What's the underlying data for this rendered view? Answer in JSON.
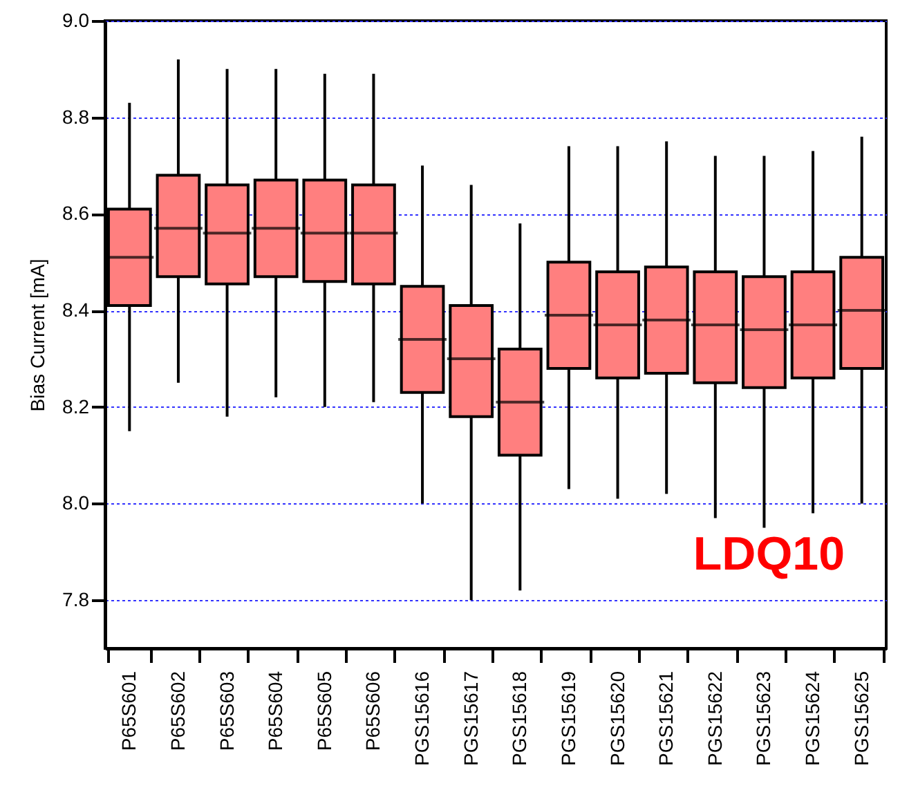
{
  "chart_data": {
    "type": "box",
    "ylabel": "Bias Current [mA]",
    "categories": [
      "P65S601",
      "P65S602",
      "P65S603",
      "P65S604",
      "P65S605",
      "P65S606",
      "PGS15616",
      "PGS15617",
      "PGS15618",
      "PGS15619",
      "PGS15620",
      "PGS15621",
      "PGS15622",
      "PGS15623",
      "PGS15624",
      "PGS15625"
    ],
    "series": [
      {
        "color": "#ff7f7f",
        "boxes": [
          {
            "low": 8.15,
            "q1": 8.41,
            "median": 8.51,
            "q3": 8.61,
            "high": 8.83
          },
          {
            "low": 8.25,
            "q1": 8.47,
            "median": 8.57,
            "q3": 8.68,
            "high": 8.92
          },
          {
            "low": 8.18,
            "q1": 8.455,
            "median": 8.56,
            "q3": 8.66,
            "high": 8.9
          },
          {
            "low": 8.22,
            "q1": 8.47,
            "median": 8.57,
            "q3": 8.67,
            "high": 8.9
          },
          {
            "low": 8.2,
            "q1": 8.46,
            "median": 8.56,
            "q3": 8.67,
            "high": 8.89
          },
          {
            "low": 8.21,
            "q1": 8.455,
            "median": 8.56,
            "q3": 8.66,
            "high": 8.89
          },
          {
            "low": 8.0,
            "q1": 8.23,
            "median": 8.34,
            "q3": 8.45,
            "high": 8.7
          },
          {
            "low": 7.8,
            "q1": 8.18,
            "median": 8.3,
            "q3": 8.41,
            "high": 8.66
          },
          {
            "low": 7.82,
            "q1": 8.1,
            "median": 8.21,
            "q3": 8.32,
            "high": 8.58
          },
          {
            "low": 8.03,
            "q1": 8.28,
            "median": 8.39,
            "q3": 8.5,
            "high": 8.74
          },
          {
            "low": 8.01,
            "q1": 8.26,
            "median": 8.37,
            "q3": 8.48,
            "high": 8.74
          },
          {
            "low": 8.02,
            "q1": 8.27,
            "median": 8.38,
            "q3": 8.49,
            "high": 8.75
          },
          {
            "low": 7.97,
            "q1": 8.25,
            "median": 8.37,
            "q3": 8.48,
            "high": 8.72
          },
          {
            "low": 7.95,
            "q1": 8.24,
            "median": 8.36,
            "q3": 8.47,
            "high": 8.72
          },
          {
            "low": 7.98,
            "q1": 8.26,
            "median": 8.37,
            "q3": 8.48,
            "high": 8.73
          },
          {
            "low": 8.0,
            "q1": 8.28,
            "median": 8.4,
            "q3": 8.51,
            "high": 8.76
          }
        ]
      }
    ],
    "ylim": [
      7.7,
      9.0
    ],
    "yticks": [
      {
        "value": 7.8,
        "label": "7.8"
      },
      {
        "value": 8,
        "label": "8.0"
      },
      8.2,
      8.4,
      8.6,
      8.8,
      {
        "value": 9,
        "label": "9.0"
      }
    ],
    "grid": "y",
    "annotations": [
      "LDQ10"
    ]
  }
}
